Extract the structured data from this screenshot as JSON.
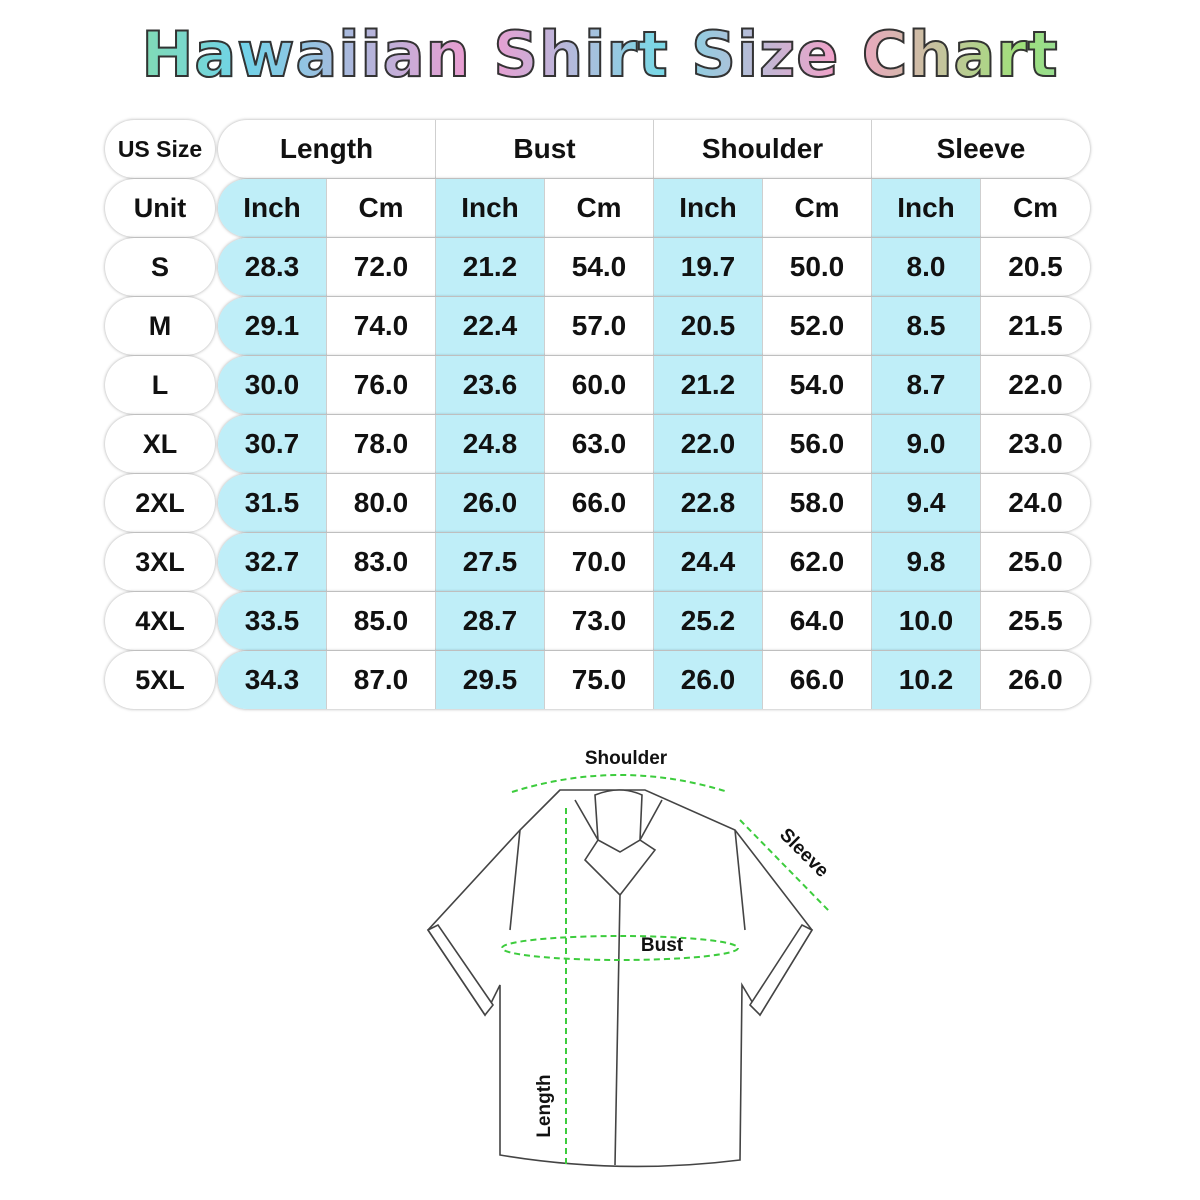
{
  "title": "Hawaiian Shirt Size Chart",
  "table": {
    "corner_label": "US Size",
    "unit_label": "Unit",
    "groups": [
      "Length",
      "Bust",
      "Shoulder",
      "Sleeve"
    ],
    "units": [
      "Inch",
      "Cm",
      "Inch",
      "Cm",
      "Inch",
      "Cm",
      "Inch",
      "Cm"
    ],
    "rows": [
      {
        "size": "S",
        "values": [
          "28.3",
          "72.0",
          "21.2",
          "54.0",
          "19.7",
          "50.0",
          "8.0",
          "20.5"
        ]
      },
      {
        "size": "M",
        "values": [
          "29.1",
          "74.0",
          "22.4",
          "57.0",
          "20.5",
          "52.0",
          "8.5",
          "21.5"
        ]
      },
      {
        "size": "L",
        "values": [
          "30.0",
          "76.0",
          "23.6",
          "60.0",
          "21.2",
          "54.0",
          "8.7",
          "22.0"
        ]
      },
      {
        "size": "XL",
        "values": [
          "30.7",
          "78.0",
          "24.8",
          "63.0",
          "22.0",
          "56.0",
          "9.0",
          "23.0"
        ]
      },
      {
        "size": "2XL",
        "values": [
          "31.5",
          "80.0",
          "26.0",
          "66.0",
          "22.8",
          "58.0",
          "9.4",
          "24.0"
        ]
      },
      {
        "size": "3XL",
        "values": [
          "32.7",
          "83.0",
          "27.5",
          "70.0",
          "24.4",
          "62.0",
          "9.8",
          "25.0"
        ]
      },
      {
        "size": "4XL",
        "values": [
          "33.5",
          "85.0",
          "28.7",
          "73.0",
          "25.2",
          "64.0",
          "10.0",
          "25.5"
        ]
      },
      {
        "size": "5XL",
        "values": [
          "34.3",
          "87.0",
          "29.5",
          "75.0",
          "26.0",
          "66.0",
          "10.2",
          "26.0"
        ]
      }
    ]
  },
  "diagram": {
    "shoulder_label": "Shoulder",
    "sleeve_label": "Sleeve",
    "bust_label": "Bust",
    "length_label": "Length"
  },
  "colors": {
    "inch_column": "#bfeef8",
    "measure_line": "#3dcc3d"
  }
}
